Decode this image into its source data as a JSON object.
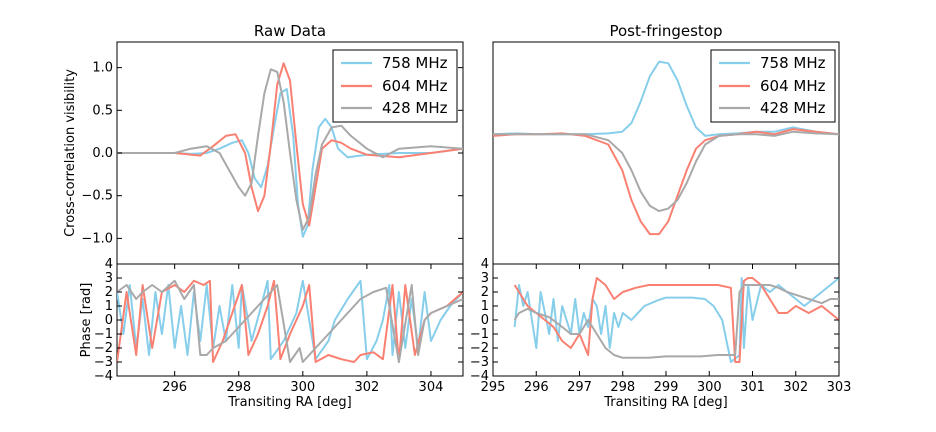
{
  "colors": {
    "758 MHz": "#87CEEB",
    "604 MHz": "#FA8072",
    "428 MHz": "#A9A9A9"
  },
  "chart_data": [
    {
      "type": "line",
      "title": "Raw Data",
      "ylabel": "Cross-correlation visibility",
      "xlim": [
        294.2,
        305
      ],
      "ylim": [
        -1.3,
        1.3
      ],
      "yticks": [
        -1.0,
        -0.5,
        0.0,
        0.5,
        1.0
      ],
      "yticklabels": [
        "−1.0",
        "−0.5",
        "0.0",
        "0.5",
        "1.0"
      ],
      "legend": "top-right",
      "series": [
        {
          "name": "758 MHz",
          "x": [
            294.2,
            295,
            296,
            296.5,
            297,
            297.4,
            297.8,
            298.1,
            298.3,
            298.5,
            298.7,
            298.9,
            299.1,
            299.3,
            299.5,
            299.7,
            299.85,
            300,
            300.15,
            300.3,
            300.5,
            300.7,
            300.9,
            301.1,
            301.4,
            302,
            303,
            304,
            305
          ],
          "y": [
            0.0,
            0.0,
            0.0,
            -0.01,
            0.0,
            0.05,
            0.12,
            0.15,
            0.0,
            -0.3,
            -0.4,
            -0.15,
            0.3,
            0.7,
            0.75,
            0.2,
            -0.6,
            -0.98,
            -0.85,
            -0.2,
            0.3,
            0.4,
            0.3,
            0.05,
            -0.05,
            -0.02,
            0.0,
            0.0,
            0.05
          ]
        },
        {
          "name": "604 MHz",
          "x": [
            294.2,
            295,
            296,
            296.8,
            297.2,
            297.6,
            297.9,
            298.2,
            298.4,
            298.6,
            298.8,
            299.0,
            299.2,
            299.4,
            299.6,
            299.8,
            300.0,
            300.2,
            300.4,
            300.6,
            300.9,
            301.2,
            301.5,
            302,
            303,
            304,
            305
          ],
          "y": [
            0.0,
            0.0,
            0.0,
            -0.03,
            0.08,
            0.2,
            0.22,
            0.0,
            -0.4,
            -0.68,
            -0.5,
            0.1,
            0.8,
            1.05,
            0.85,
            0.1,
            -0.6,
            -0.85,
            -0.4,
            0.05,
            0.15,
            0.12,
            0.05,
            -0.02,
            -0.05,
            0.0,
            0.05
          ]
        },
        {
          "name": "428 MHz",
          "x": [
            294.2,
            295,
            296,
            296.5,
            297,
            297.4,
            297.7,
            298,
            298.2,
            298.4,
            298.6,
            298.8,
            299.0,
            299.2,
            299.4,
            299.6,
            299.8,
            300.0,
            300.2,
            300.4,
            300.6,
            300.9,
            301.2,
            301.5,
            302,
            302.5,
            303,
            304,
            305
          ],
          "y": [
            0.0,
            0.0,
            0.0,
            0.05,
            0.08,
            0.0,
            -0.2,
            -0.4,
            -0.5,
            -0.35,
            0.2,
            0.7,
            0.98,
            0.95,
            0.6,
            0.0,
            -0.55,
            -0.9,
            -0.75,
            -0.25,
            0.1,
            0.3,
            0.32,
            0.2,
            0.05,
            -0.05,
            0.05,
            0.08,
            0.05
          ]
        }
      ]
    },
    {
      "type": "line",
      "title": "Post-fringestop",
      "ylabel": "",
      "xlim": [
        295.5,
        303
      ],
      "ylim": [
        -1.3,
        1.3
      ],
      "legend": "top-right",
      "series": [
        {
          "name": "758 MHz",
          "x": [
            295.5,
            296,
            296.5,
            297,
            297.5,
            298,
            298.3,
            298.5,
            298.7,
            298.9,
            299.1,
            299.3,
            299.5,
            299.7,
            299.9,
            300.1,
            300.4,
            300.8,
            301.2,
            301.6,
            302,
            302.5,
            303
          ],
          "y": [
            0.22,
            0.23,
            0.22,
            0.22,
            0.22,
            0.23,
            0.25,
            0.35,
            0.6,
            0.9,
            1.07,
            1.05,
            0.85,
            0.55,
            0.3,
            0.2,
            0.22,
            0.23,
            0.25,
            0.25,
            0.3,
            0.25,
            0.22
          ]
        },
        {
          "name": "604 MHz",
          "x": [
            295.5,
            296,
            296.5,
            297,
            297.5,
            298,
            298.3,
            298.5,
            298.7,
            298.9,
            299.1,
            299.3,
            299.5,
            299.7,
            299.9,
            300.1,
            300.4,
            300.8,
            301.2,
            301.6,
            302,
            302.5,
            303
          ],
          "y": [
            0.2,
            0.22,
            0.22,
            0.23,
            0.2,
            0.1,
            -0.2,
            -0.55,
            -0.8,
            -0.95,
            -0.95,
            -0.8,
            -0.5,
            -0.2,
            0.05,
            0.15,
            0.2,
            0.22,
            0.25,
            0.22,
            0.28,
            0.25,
            0.22
          ]
        },
        {
          "name": "428 MHz",
          "x": [
            295.5,
            296,
            296.5,
            297,
            297.5,
            298,
            298.3,
            298.5,
            298.7,
            298.9,
            299.1,
            299.3,
            299.5,
            299.7,
            299.9,
            300.1,
            300.4,
            300.8,
            301.2,
            301.6,
            302,
            302.5,
            303
          ],
          "y": [
            0.22,
            0.22,
            0.22,
            0.22,
            0.22,
            0.15,
            0.0,
            -0.2,
            -0.45,
            -0.62,
            -0.68,
            -0.65,
            -0.55,
            -0.35,
            -0.1,
            0.1,
            0.2,
            0.22,
            0.22,
            0.2,
            0.25,
            0.23,
            0.22
          ]
        }
      ]
    },
    {
      "type": "line",
      "title": "",
      "ylabel": "Phase [rad]",
      "xlabel": "Transiting RA [deg]",
      "xlim": [
        294.2,
        305
      ],
      "ylim": [
        -4,
        4
      ],
      "xticks": [
        296,
        298,
        300,
        302,
        304
      ],
      "yticks": [
        -4,
        -3,
        -2,
        -1,
        0,
        1,
        2,
        3,
        4
      ],
      "yticklabels": [
        "−4",
        "−3",
        "−2",
        "−1",
        "0",
        "1",
        "2",
        "3",
        "4"
      ],
      "series": [
        {
          "name": "758 MHz",
          "x": [
            294.2,
            294.4,
            294.6,
            294.8,
            295,
            295.2,
            295.4,
            295.6,
            295.8,
            296,
            296.2,
            296.4,
            296.6,
            296.8,
            297,
            297.2,
            297.4,
            297.6,
            297.8,
            298,
            298.1,
            298.4,
            298.7,
            298.9,
            299,
            299.4,
            299.8,
            300,
            300.4,
            300.8,
            301,
            301.4,
            301.8,
            302,
            302.3,
            302.5,
            302.7,
            302.8,
            303,
            303.2,
            303.4,
            303.6,
            303.8,
            304,
            304.3,
            304.6,
            305
          ],
          "y": [
            2,
            -1,
            2.5,
            -2,
            1.5,
            -2.5,
            2,
            -1,
            2.5,
            -2,
            1,
            -2.5,
            2,
            -1.5,
            2.5,
            -2,
            1,
            -1.5,
            2.5,
            -2,
            2.5,
            -1.5,
            1,
            2.8,
            -2.8,
            -1.5,
            0.5,
            2.8,
            -2.8,
            -1.5,
            0,
            1.5,
            2.8,
            -2.8,
            -1.5,
            0,
            2.5,
            -2.5,
            2,
            -2,
            1.5,
            -2,
            2,
            -1.5,
            0,
            1,
            2
          ]
        },
        {
          "name": "604 MHz",
          "x": [
            294.2,
            294.5,
            294.8,
            295,
            295.3,
            295.6,
            296,
            296.3,
            296.6,
            296.9,
            297.1,
            297.2,
            297.5,
            297.8,
            298.1,
            298.3,
            298.6,
            298.9,
            299.1,
            299.3,
            299.6,
            300,
            300.2,
            300.4,
            300.8,
            301.2,
            301.6,
            301.8,
            302.2,
            302.5,
            302.8,
            303,
            303.2,
            303.5,
            303.8,
            304,
            304.5,
            305
          ],
          "y": [
            -3,
            2,
            -2.5,
            2.5,
            -2,
            2,
            2.5,
            2,
            2.8,
            2.5,
            2.8,
            -3,
            -1.5,
            0.5,
            2.5,
            -2.5,
            -1,
            1,
            2.8,
            -2.8,
            -1,
            1,
            2.5,
            -3,
            -2.5,
            -2.8,
            -3,
            -2.5,
            -2.3,
            -2.8,
            2.5,
            -3,
            2.5,
            -2.5,
            0,
            0.5,
            1,
            2
          ]
        },
        {
          "name": "428 MHz",
          "x": [
            294.2,
            294.5,
            294.8,
            295,
            295.3,
            295.6,
            296,
            296.3,
            296.6,
            296.8,
            297,
            297.2,
            297.6,
            298,
            298.4,
            298.8,
            299.2,
            299.6,
            299.9,
            300,
            300.2,
            300.6,
            301,
            301.4,
            301.8,
            302.2,
            302.6,
            303,
            303.4,
            303.6,
            303.8,
            304,
            304.5,
            305
          ],
          "y": [
            2,
            2.5,
            1.5,
            2,
            2.5,
            2,
            2.8,
            1.5,
            2.5,
            -2.5,
            -2.5,
            -2,
            -1.5,
            -0.5,
            0.5,
            1.5,
            2.5,
            -3,
            -2,
            -3,
            -2.5,
            -1.5,
            -0.5,
            0.5,
            1.5,
            2,
            2.3,
            -3,
            2.5,
            -2.5,
            0,
            0.5,
            1,
            1.5
          ]
        }
      ]
    },
    {
      "type": "line",
      "title": "",
      "ylabel": "",
      "xlabel": "Transiting RA [deg]",
      "xlim": [
        295,
        303
      ],
      "ylim": [
        -4,
        4
      ],
      "xticks": [
        295,
        296,
        297,
        298,
        299,
        300,
        301,
        302,
        303
      ],
      "yticks": [
        -4,
        -3,
        -2,
        -1,
        0,
        1,
        2,
        3,
        4
      ],
      "yticklabels": [
        "−4",
        "−3",
        "−2",
        "−1",
        "0",
        "1",
        "2",
        "3",
        "4"
      ],
      "series": [
        {
          "name": "758 MHz",
          "x": [
            295.5,
            295.6,
            295.7,
            295.8,
            295.9,
            296,
            296.1,
            296.2,
            296.3,
            296.4,
            296.5,
            296.6,
            296.7,
            296.8,
            296.9,
            297,
            297.1,
            297.2,
            297.3,
            297.4,
            297.5,
            297.6,
            297.7,
            297.8,
            297.9,
            298,
            298.2,
            298.5,
            298.8,
            299,
            299.3,
            299.6,
            299.9,
            300.1,
            300.3,
            300.5,
            300.7,
            300.75,
            300.8,
            300.9,
            301,
            301.2,
            301.4,
            301.6,
            301.8,
            302,
            302.2,
            302.4,
            302.6,
            302.8,
            303
          ],
          "y": [
            -0.5,
            2.5,
            1,
            2,
            0,
            -2,
            2,
            0.5,
            -1,
            1.5,
            -1.5,
            1,
            0,
            -1,
            1.5,
            -1,
            0.5,
            -0.5,
            1.5,
            1,
            -1,
            1,
            -2,
            0.5,
            -0.5,
            0.5,
            0,
            1,
            1.4,
            1.6,
            1.6,
            1.6,
            1.5,
            1,
            0,
            -3,
            -2.5,
            3,
            -2,
            2.5,
            0,
            2.5,
            2,
            2.5,
            2,
            1.5,
            1,
            1.5,
            2,
            2.5,
            3
          ]
        },
        {
          "name": "604 MHz",
          "x": [
            295.5,
            295.6,
            295.8,
            296,
            296.2,
            296.4,
            296.6,
            296.8,
            297,
            297.2,
            297.3,
            297.4,
            297.6,
            297.8,
            298,
            298.3,
            298.6,
            299,
            299.4,
            299.8,
            300.2,
            300.5,
            300.6,
            300.7,
            300.8,
            300.9,
            301,
            301.2,
            301.4,
            301.6,
            301.8,
            302,
            302.3,
            302.6,
            302.8,
            303
          ],
          "y": [
            2.5,
            2,
            1,
            0.5,
            0,
            -0.5,
            -1.5,
            -2,
            -1,
            -2.5,
            1.5,
            3,
            2.5,
            1.5,
            2,
            2.3,
            2.5,
            2.5,
            2.5,
            2.5,
            2.5,
            2.3,
            -3,
            -3,
            2.8,
            3,
            3,
            2.5,
            1.5,
            0.5,
            0.5,
            1,
            0.5,
            1,
            0.5,
            0
          ]
        },
        {
          "name": "428 MHz",
          "x": [
            295.5,
            295.6,
            295.8,
            296,
            296.3,
            296.6,
            296.8,
            297,
            297.2,
            297.4,
            297.6,
            297.8,
            298,
            298.3,
            298.6,
            299,
            299.4,
            299.8,
            300.2,
            300.5,
            300.6,
            300.7,
            300.8,
            300.9,
            301,
            301.2,
            301.4,
            301.6,
            301.8,
            302,
            302.3,
            302.6,
            302.8,
            303
          ],
          "y": [
            0,
            0.5,
            0.8,
            0.5,
            0.2,
            -0.5,
            -1,
            -1,
            0,
            -1,
            -2,
            -2.5,
            -2.7,
            -2.7,
            -2.7,
            -2.6,
            -2.6,
            -2.6,
            -2.5,
            -2.5,
            -2.5,
            2,
            2.5,
            2.5,
            2.5,
            2.5,
            2.5,
            2.3,
            2,
            1.8,
            1.5,
            1.2,
            1.5,
            1.5
          ]
        }
      ]
    }
  ]
}
